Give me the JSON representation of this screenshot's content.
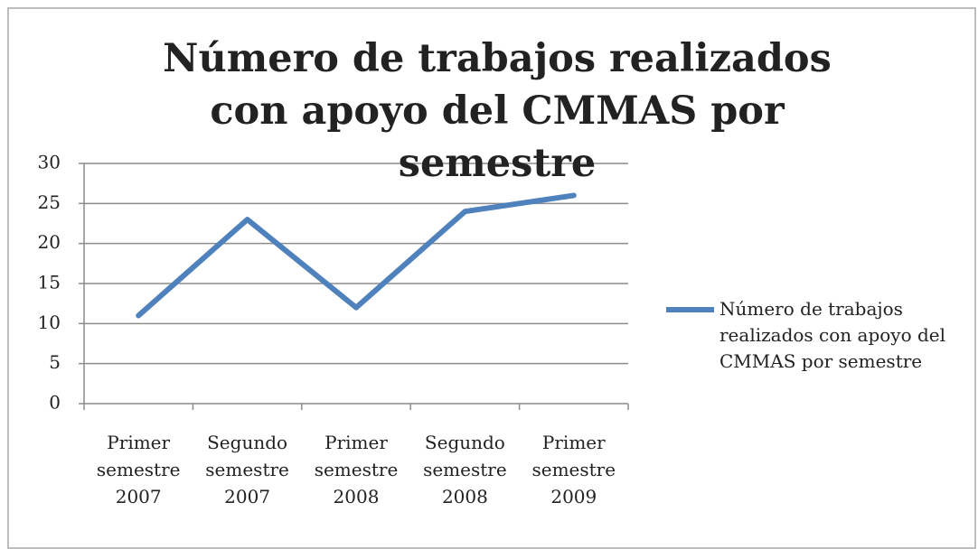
{
  "chart_data": {
    "type": "line",
    "title": "Número de trabajos realizados con apoyo del CMMAS por semestre",
    "categories": [
      "Primer semestre 2007",
      "Segundo semestre 2007",
      "Primer semestre 2008",
      "Segundo semestre 2008",
      "Primer semestre 2009"
    ],
    "series": [
      {
        "name": "Número de trabajos realizados con apoyo del CMMAS por semestre",
        "color": "#4f81bd",
        "values": [
          11,
          23,
          12,
          24,
          26
        ]
      }
    ],
    "ylim": [
      0,
      30
    ],
    "yticks": [
      0,
      5,
      10,
      15,
      20,
      25,
      30
    ],
    "grid": true,
    "legend": "right"
  }
}
